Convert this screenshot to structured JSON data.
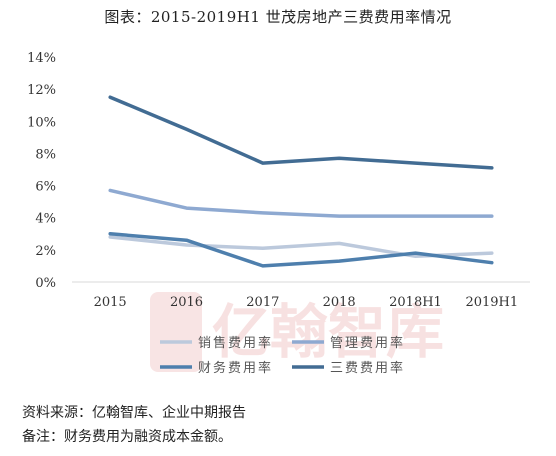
{
  "chart_data": {
    "type": "line",
    "title": "图表：2015-2019H1 世茂房地产三费费用率情况",
    "categories": [
      "2015",
      "2016",
      "2017",
      "2018",
      "2018H1",
      "2019H1"
    ],
    "ylim": [
      0,
      14
    ],
    "yticks": [
      "0%",
      "2%",
      "4%",
      "6%",
      "8%",
      "10%",
      "12%",
      "14%"
    ],
    "grid": false,
    "legend_position": "bottom",
    "series": [
      {
        "name": "销售费用率",
        "color": "#bcc9dc",
        "values": [
          2.8,
          2.3,
          2.1,
          2.4,
          1.6,
          1.8
        ]
      },
      {
        "name": "管理费用率",
        "color": "#8ea9d1",
        "values": [
          5.7,
          4.6,
          4.3,
          4.1,
          4.1,
          4.1
        ]
      },
      {
        "name": "财务费用率",
        "color": "#4e7fad",
        "values": [
          3.0,
          2.6,
          1.0,
          1.3,
          1.8,
          1.2
        ]
      },
      {
        "name": "三费费用率",
        "color": "#426c93",
        "values": [
          11.5,
          9.5,
          7.4,
          7.7,
          7.4,
          7.1
        ]
      }
    ]
  },
  "watermark": {
    "text": "亿翰智库"
  },
  "notes": {
    "source": "资料来源：亿翰智库、企业中期报告",
    "remark": "备注：财务费用为融资成本金额。"
  }
}
